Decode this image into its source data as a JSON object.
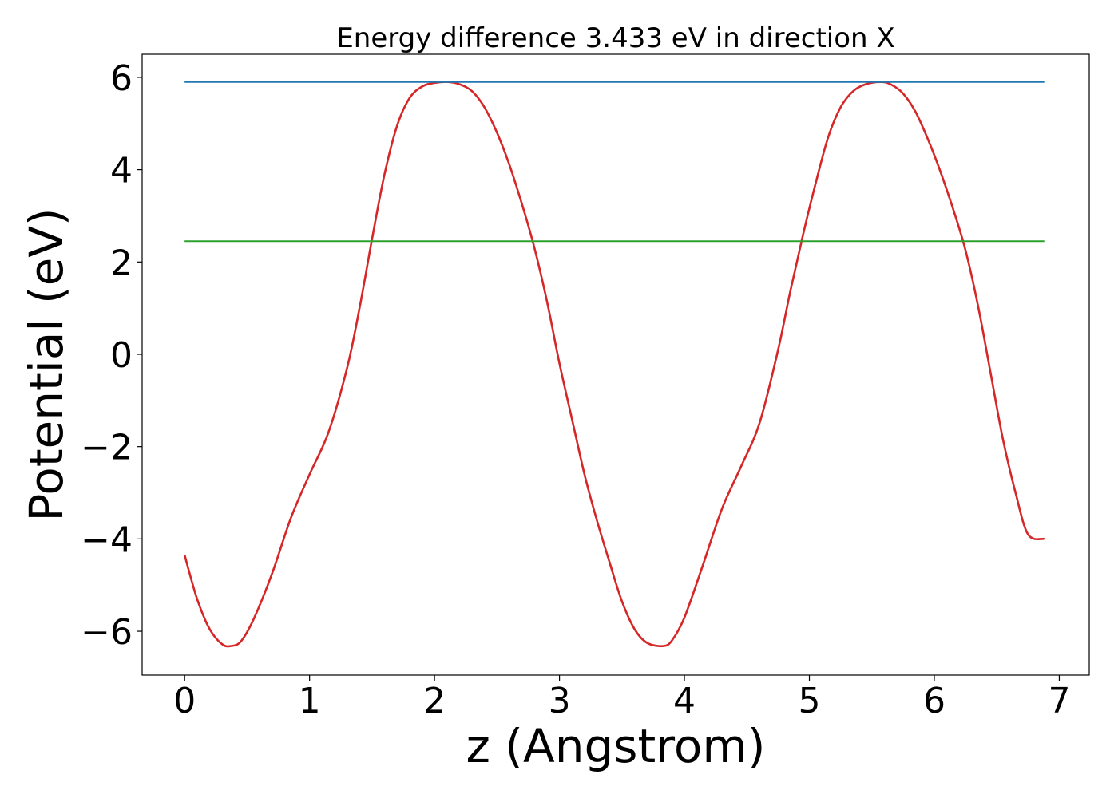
{
  "chart_data": {
    "type": "line",
    "title": "Energy difference 3.433 eV in direction X",
    "xlabel": "z (Angstrom)",
    "ylabel": "Potential (eV)",
    "xlim": [
      -0.34,
      7.24
    ],
    "ylim": [
      -6.95,
      6.5
    ],
    "xticks": [
      0,
      1,
      2,
      3,
      4,
      5,
      6,
      7
    ],
    "xtick_labels": [
      "0",
      "1",
      "2",
      "3",
      "4",
      "5",
      "6",
      "7"
    ],
    "yticks": [
      -6,
      -4,
      -2,
      0,
      2,
      4,
      6
    ],
    "ytick_labels": [
      "−6",
      "−4",
      "−2",
      "0",
      "2",
      "4",
      "6"
    ],
    "grid": false,
    "colors": {
      "potential": "#d62728",
      "vacuum": "#1f77b4",
      "fermi": "#2ca02c"
    },
    "series": [
      {
        "x": [
          0,
          0.1,
          0.2,
          0.3,
          0.37,
          0.45,
          0.55,
          0.7,
          0.85,
          1.0,
          1.15,
          1.3,
          1.4,
          1.5,
          1.6,
          1.7,
          1.8,
          1.9,
          2.0,
          2.11,
          2.2,
          2.3,
          2.4,
          2.5,
          2.6,
          2.7,
          2.8,
          2.9,
          3.0,
          3.1,
          3.2,
          3.3,
          3.4,
          3.5,
          3.6,
          3.7,
          3.83,
          3.9,
          4.0,
          4.15,
          4.3,
          4.45,
          4.6,
          4.75,
          4.85,
          4.95,
          5.05,
          5.15,
          5.25,
          5.35,
          5.45,
          5.57,
          5.65,
          5.75,
          5.85,
          5.95,
          6.05,
          6.15,
          6.25,
          6.35,
          6.45,
          6.55,
          6.65,
          6.75,
          6.88
        ],
        "values": [
          -4.35,
          -5.3,
          -5.95,
          -6.28,
          -6.32,
          -6.22,
          -5.75,
          -4.75,
          -3.55,
          -2.6,
          -1.7,
          -0.3,
          1.0,
          2.5,
          3.9,
          4.95,
          5.55,
          5.8,
          5.88,
          5.9,
          5.85,
          5.7,
          5.35,
          4.8,
          4.1,
          3.25,
          2.3,
          1.15,
          -0.2,
          -1.4,
          -2.6,
          -3.6,
          -4.5,
          -5.35,
          -5.95,
          -6.25,
          -6.32,
          -6.2,
          -5.7,
          -4.55,
          -3.35,
          -2.45,
          -1.5,
          0.1,
          1.4,
          2.6,
          3.7,
          4.7,
          5.35,
          5.7,
          5.85,
          5.9,
          5.85,
          5.65,
          5.25,
          4.65,
          3.95,
          3.15,
          2.25,
          1.05,
          -0.4,
          -1.85,
          -3.0,
          -3.9,
          -4.0
        ]
      },
      {
        "x": [
          0,
          6.88
        ],
        "values": [
          5.9,
          5.9
        ]
      },
      {
        "x": [
          0,
          6.88
        ],
        "values": [
          2.45,
          2.45
        ]
      }
    ]
  }
}
